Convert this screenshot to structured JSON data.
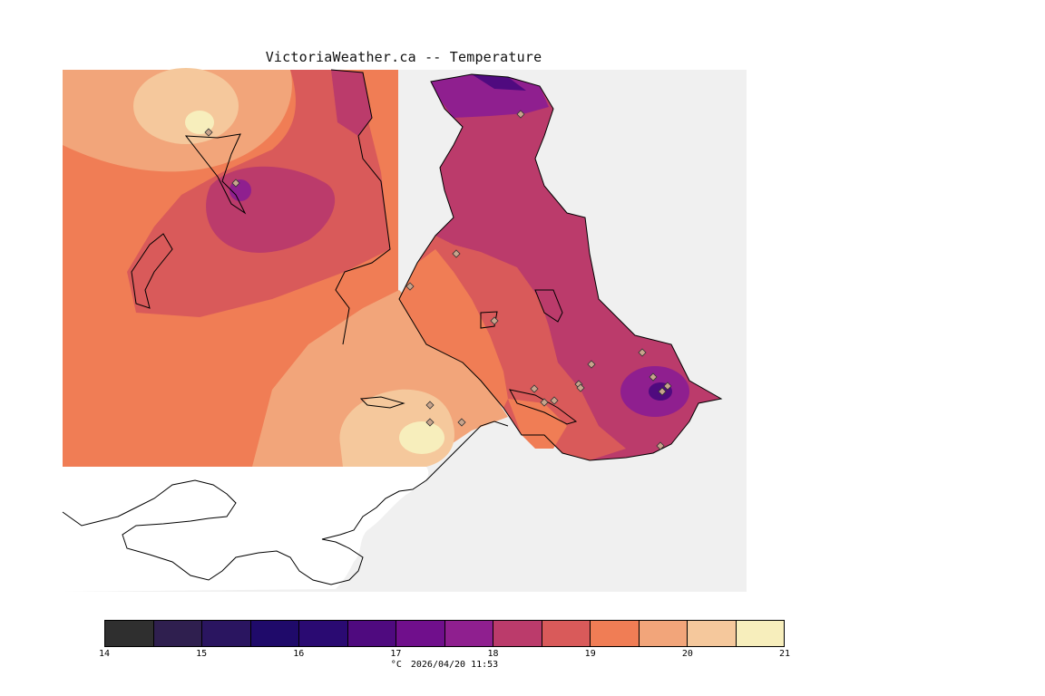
{
  "title": "VictoriaWeather.ca -- Temperature",
  "colors": {
    "ocean": "#f0f0f0",
    "land_unanalyzed": "#ffffff",
    "coastline": "#000000",
    "station_marker": "#c8a48c"
  },
  "legend": {
    "colors": [
      "#2f2f2f",
      "#2f1f4f",
      "#2a1560",
      "#1f0a6a",
      "#2a0a72",
      "#4f0a7f",
      "#700f8c",
      "#8f1f8f",
      "#bb3b6b",
      "#d95a5a",
      "#f07d55",
      "#f2a57a",
      "#f5c89c",
      "#f7eebc"
    ],
    "tick_values": [
      14,
      15,
      16,
      17,
      18,
      19,
      20,
      21
    ],
    "unit": "°C",
    "timestamp": "2026/04/20 11:53"
  },
  "map": {
    "icons": {
      "station_marker": "diamond-station-icon"
    },
    "stations_count_visible": 20
  }
}
